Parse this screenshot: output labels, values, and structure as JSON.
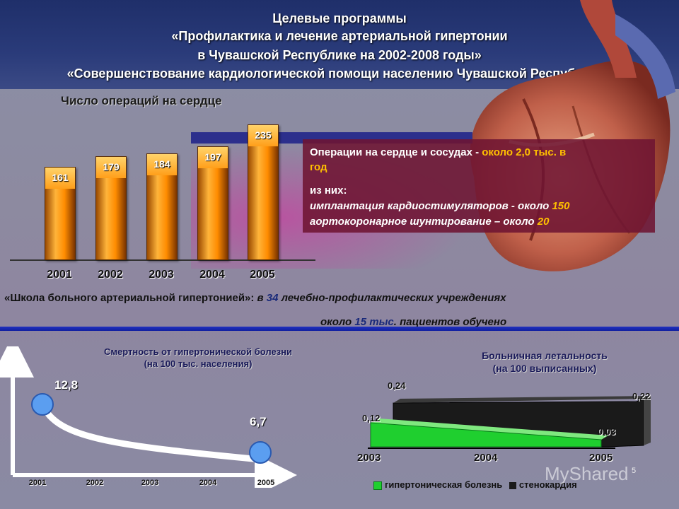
{
  "header": {
    "line1": "Целевые программы",
    "line2": "«Профилактика и лечение артериальной гипертонии",
    "line3": "в Чувашской Республике на 2002-2008 годы»",
    "line4": "«Совершенствование кардиологической помощи населению Чувашской Республики»"
  },
  "operations_chart": {
    "title": "Число операций на сердце",
    "chart_data": {
      "type": "bar",
      "categories": [
        "2001",
        "2002",
        "2003",
        "2004",
        "2005"
      ],
      "values": [
        161,
        179,
        184,
        197,
        235
      ],
      "value_labels": [
        "161",
        "179",
        "184",
        "197",
        "235"
      ],
      "title": "Число операций на сердце",
      "ylim": [
        0,
        250
      ]
    }
  },
  "info": {
    "line1_prefix": "Операции на сердце и сосудах - ",
    "line1_highlight": "около 2,0 тыс. в",
    "line1b_highlight": "год",
    "line2": "из них:",
    "line3_prefix": "имплантация кардиостимуляторов - около ",
    "line3_value": "150",
    "line4_prefix": "аортокоронарное шунтирование – около ",
    "line4_value": "20"
  },
  "school": {
    "prefix": "«Школа больного артериальной гипертонией»:",
    "mid1": " в ",
    "count": "34",
    "mid2": " лечебно-профилактических учреждениях",
    "line2_prefix": "около ",
    "line2_value": "15 тыс",
    "line2_suffix": ". пациентов обучено"
  },
  "mortality_chart": {
    "title_line1": "Смертность от гипертонической болезни",
    "title_line2": "(на 100 тыс. населения)",
    "chart_data": {
      "type": "line",
      "x": [
        "2001",
        "2002",
        "2003",
        "2004",
        "2005"
      ],
      "points": [
        {
          "x": "2001",
          "y": 12.8,
          "label": "12,8"
        },
        {
          "x": "2005",
          "y": 6.7,
          "label": "6,7"
        }
      ],
      "title": "Смертность от гипертонической болезни (на 100 тыс. населения)"
    }
  },
  "lethality_chart": {
    "title_line1": "Больничная летальность",
    "title_line2": "(на 100 выписанных)",
    "chart_data": {
      "type": "area",
      "x": [
        "2003",
        "2004",
        "2005"
      ],
      "series": [
        {
          "name": "гипертоническая болезнь",
          "start": 0.12,
          "end": 0.03,
          "start_label": "0,12",
          "end_label": "0,03"
        },
        {
          "name": "стенокардия",
          "start": 0.24,
          "end": 0.22,
          "start_label": "0,24",
          "end_label": "0,22"
        }
      ]
    },
    "legend": [
      "гипертоническая болезнь",
      "стенокардия"
    ]
  },
  "colors": {
    "header": "#2a3b7a",
    "bar": "#ff9f1a",
    "info_bg": "#6e1432",
    "highlight": "#ffc000",
    "divider": "#2030c0",
    "green": "#2bd62b"
  },
  "watermark": "MyShared",
  "page_number": "5"
}
